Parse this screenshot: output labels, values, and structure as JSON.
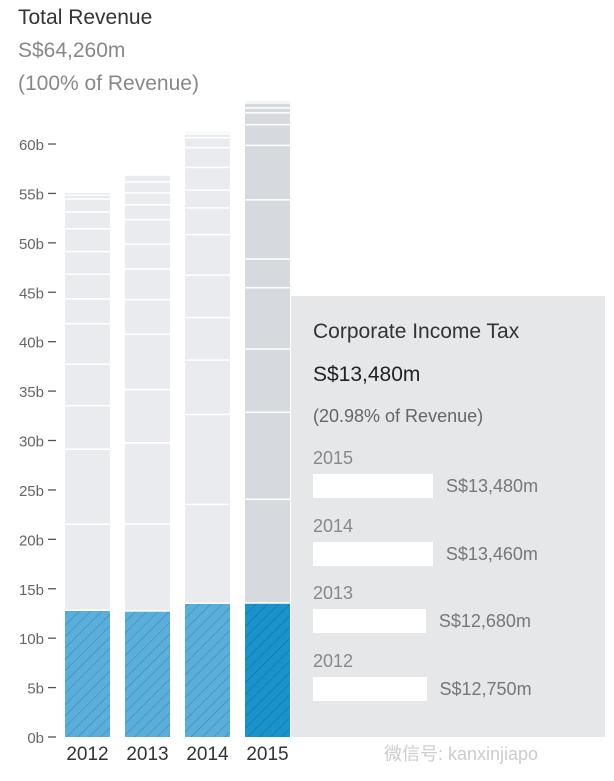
{
  "header": {
    "title": "Total Revenue",
    "value": "S$64,260m",
    "share": "(100% of Revenue)"
  },
  "chart_data": {
    "type": "bar",
    "stacked": true,
    "categories": [
      "2012",
      "2013",
      "2014",
      "2015"
    ],
    "y_ticks": [
      "0b",
      "5b",
      "10b",
      "15b",
      "20b",
      "25b",
      "30b",
      "35b",
      "40b",
      "45b",
      "50b",
      "55b",
      "60b"
    ],
    "ylim": [
      0,
      65
    ],
    "yunit": "billion S$",
    "highlight_series": "Corporate Income Tax",
    "highlight_values": [
      12.75,
      12.68,
      13.46,
      13.48
    ],
    "other_segments": [
      [
        8.7,
        7.6,
        4.4,
        4.2,
        4.1,
        2.5,
        2.5,
        2.3,
        2.3,
        1.7,
        1.3,
        0.4,
        0.3
      ],
      [
        8.8,
        8.2,
        5.4,
        5.6,
        3.5,
        3.1,
        2.5,
        2.5,
        1.5,
        1.2,
        1.1,
        0.7
      ],
      [
        10.0,
        9.1,
        5.5,
        4.3,
        4.3,
        4.1,
        2.7,
        1.8,
        2.3,
        2.0,
        1.0,
        0.4,
        0.2
      ],
      [
        10.5,
        8.8,
        6.4,
        6.2,
        2.9,
        6.0,
        5.5,
        2.1,
        1.2,
        0.5,
        0.5,
        0.2
      ]
    ],
    "selected_year": "2015",
    "colors": {
      "highlight": "#5aaedc",
      "highlight_selected": "#1a93cc",
      "other": "#e9ebee",
      "other_selected": "#d6dade",
      "tooltip_bg": "#e6e7e9"
    }
  },
  "tooltip": {
    "name": "Corporate Income Tax",
    "value": "S$13,480m",
    "share": "(20.98% of Revenue)",
    "rows": [
      {
        "year": "2015",
        "amount": "S$13,480m",
        "value": 13480
      },
      {
        "year": "2014",
        "amount": "S$13,460m",
        "value": 13460
      },
      {
        "year": "2013",
        "amount": "S$12,680m",
        "value": 12680
      },
      {
        "year": "2012",
        "amount": "S$12,750m",
        "value": 12750
      }
    ]
  },
  "watermark": "微信号: kanxinjiapo"
}
